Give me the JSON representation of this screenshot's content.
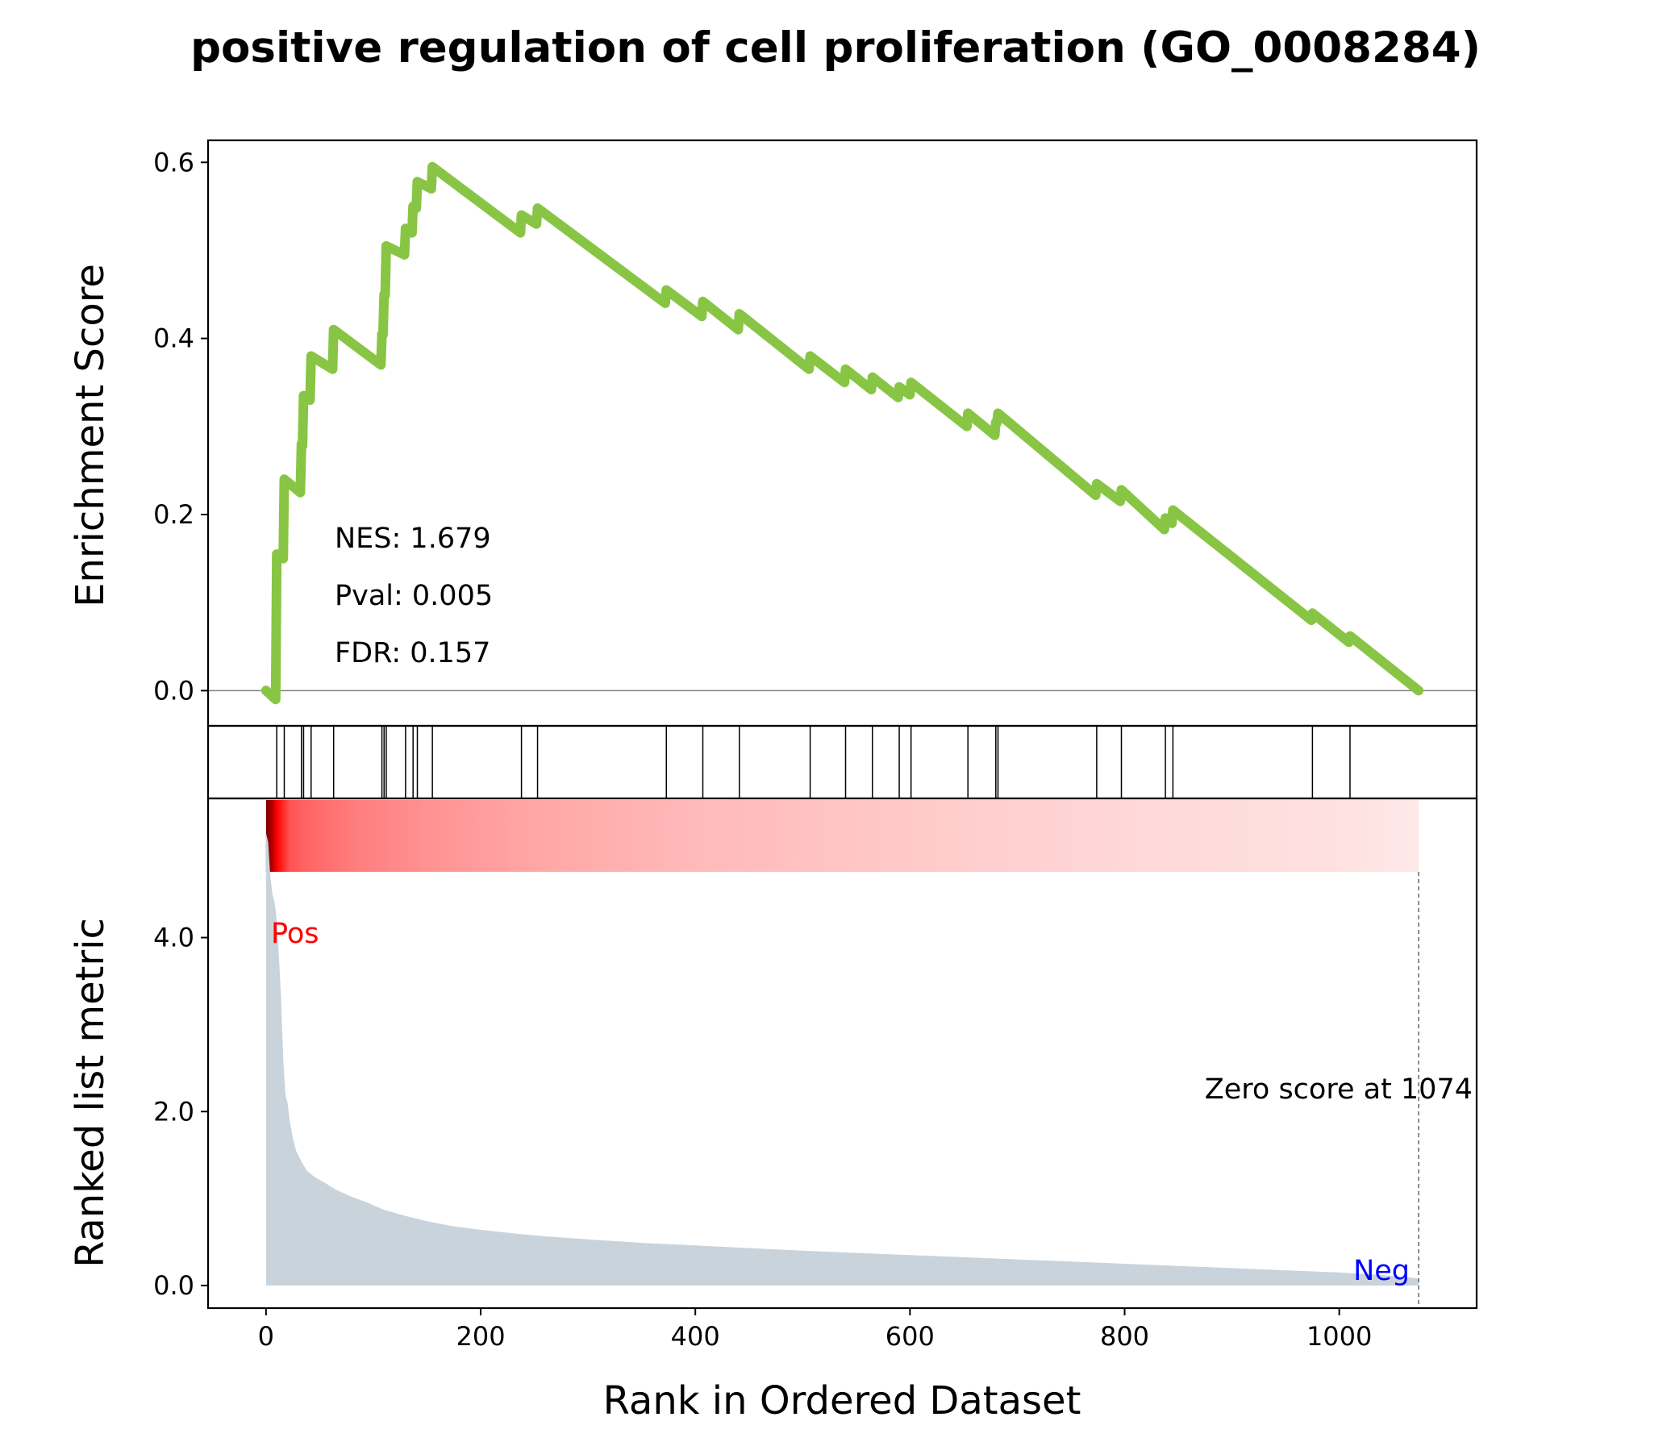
{
  "title": "positive regulation of cell proliferation (GO_0008284)",
  "colors": {
    "es_line": "#88C544",
    "metric_fill": "#C9D3DB",
    "pos_label": "#FF0000",
    "neg_label": "#0000FF",
    "zero_line": "#808080",
    "heatmap": "#FF0000"
  },
  "stats": {
    "nes": "NES: 1.679",
    "pval": "Pval: 0.005",
    "fdr": "FDR: 0.157"
  },
  "annotations": {
    "pos": "Pos",
    "neg": "Neg",
    "zero_score": "Zero score at 1074"
  },
  "chart_data": [
    {
      "type": "line",
      "name": "enrichment-score",
      "ylabel": "Enrichment Score",
      "xlim": [
        -54,
        1128
      ],
      "ylim": [
        -0.04,
        0.625
      ],
      "yticks": [
        "0.0",
        "0.2",
        "0.4",
        "0.6"
      ],
      "ytick_values": [
        0.0,
        0.2,
        0.4,
        0.6
      ],
      "grid": false,
      "zero_score_rank": 1074,
      "hit_ranks": [
        10,
        17,
        33,
        35,
        42,
        63,
        108,
        110,
        112,
        130,
        137,
        141,
        155,
        238,
        253,
        373,
        407,
        441,
        507,
        540,
        565,
        590,
        601,
        654,
        680,
        682,
        774,
        797,
        838,
        845,
        975,
        1010
      ],
      "points": [
        [
          0,
          0.0
        ],
        [
          9,
          -0.01
        ],
        [
          10,
          0.155
        ],
        [
          16,
          0.15
        ],
        [
          17,
          0.24
        ],
        [
          32,
          0.225
        ],
        [
          33,
          0.28
        ],
        [
          34,
          0.278
        ],
        [
          35,
          0.335
        ],
        [
          41,
          0.33
        ],
        [
          42,
          0.38
        ],
        [
          62,
          0.365
        ],
        [
          63,
          0.41
        ],
        [
          107,
          0.37
        ],
        [
          108,
          0.405
        ],
        [
          109,
          0.404
        ],
        [
          110,
          0.45
        ],
        [
          111,
          0.449
        ],
        [
          112,
          0.505
        ],
        [
          129,
          0.495
        ],
        [
          130,
          0.525
        ],
        [
          136,
          0.52
        ],
        [
          137,
          0.55
        ],
        [
          140,
          0.548
        ],
        [
          141,
          0.578
        ],
        [
          154,
          0.57
        ],
        [
          155,
          0.595
        ],
        [
          237,
          0.52
        ],
        [
          238,
          0.54
        ],
        [
          252,
          0.53
        ],
        [
          253,
          0.548
        ],
        [
          372,
          0.44
        ],
        [
          373,
          0.455
        ],
        [
          406,
          0.425
        ],
        [
          407,
          0.442
        ],
        [
          440,
          0.41
        ],
        [
          441,
          0.428
        ],
        [
          506,
          0.365
        ],
        [
          507,
          0.38
        ],
        [
          539,
          0.35
        ],
        [
          540,
          0.365
        ],
        [
          564,
          0.342
        ],
        [
          565,
          0.356
        ],
        [
          589,
          0.333
        ],
        [
          590,
          0.345
        ],
        [
          600,
          0.336
        ],
        [
          601,
          0.35
        ],
        [
          653,
          0.3
        ],
        [
          654,
          0.315
        ],
        [
          679,
          0.29
        ],
        [
          680,
          0.305
        ],
        [
          681,
          0.304
        ],
        [
          682,
          0.315
        ],
        [
          773,
          0.222
        ],
        [
          774,
          0.235
        ],
        [
          796,
          0.215
        ],
        [
          797,
          0.228
        ],
        [
          837,
          0.183
        ],
        [
          838,
          0.196
        ],
        [
          844,
          0.19
        ],
        [
          845,
          0.205
        ],
        [
          974,
          0.08
        ],
        [
          975,
          0.088
        ],
        [
          1009,
          0.055
        ],
        [
          1010,
          0.062
        ],
        [
          1074,
          0.0
        ]
      ]
    },
    {
      "type": "area",
      "name": "ranked-list-metric",
      "xlabel": "Rank in Ordered Dataset",
      "ylabel": "Ranked list metric",
      "xlim": [
        -54,
        1128
      ],
      "ylim": [
        -0.26,
        5.6
      ],
      "xticks": [
        "0",
        "200",
        "400",
        "600",
        "800",
        "1000"
      ],
      "xtick_values": [
        0,
        200,
        400,
        600,
        800,
        1000
      ],
      "yticks": [
        "0.0",
        "2.0",
        "4.0"
      ],
      "ytick_values": [
        0.0,
        2.0,
        4.0
      ],
      "grid": false,
      "points": [
        [
          0,
          5.2
        ],
        [
          2,
          5.1
        ],
        [
          4,
          4.7
        ],
        [
          6,
          4.5
        ],
        [
          8,
          4.4
        ],
        [
          10,
          4.2
        ],
        [
          12,
          3.8
        ],
        [
          14,
          3.3
        ],
        [
          16,
          2.6
        ],
        [
          18,
          2.2
        ],
        [
          20,
          2.1
        ],
        [
          22,
          1.9
        ],
        [
          25,
          1.7
        ],
        [
          28,
          1.55
        ],
        [
          32,
          1.45
        ],
        [
          38,
          1.32
        ],
        [
          45,
          1.25
        ],
        [
          55,
          1.18
        ],
        [
          65,
          1.1
        ],
        [
          80,
          1.02
        ],
        [
          95,
          0.95
        ],
        [
          110,
          0.87
        ],
        [
          130,
          0.8
        ],
        [
          150,
          0.74
        ],
        [
          175,
          0.68
        ],
        [
          200,
          0.64
        ],
        [
          230,
          0.6
        ],
        [
          260,
          0.565
        ],
        [
          300,
          0.53
        ],
        [
          350,
          0.49
        ],
        [
          400,
          0.46
        ],
        [
          450,
          0.43
        ],
        [
          500,
          0.4
        ],
        [
          550,
          0.375
        ],
        [
          600,
          0.35
        ],
        [
          650,
          0.325
        ],
        [
          700,
          0.3
        ],
        [
          750,
          0.275
        ],
        [
          800,
          0.25
        ],
        [
          850,
          0.225
        ],
        [
          900,
          0.2
        ],
        [
          950,
          0.175
        ],
        [
          1000,
          0.15
        ],
        [
          1040,
          0.12
        ],
        [
          1074,
          0.08
        ]
      ]
    },
    {
      "type": "heatmap",
      "name": "rank-color-bar",
      "x_range": [
        0,
        1074
      ],
      "stops": [
        [
          0,
          1.0
        ],
        [
          5,
          0.95
        ],
        [
          10,
          0.85
        ],
        [
          16,
          0.7
        ],
        [
          22,
          0.55
        ],
        [
          40,
          0.48
        ],
        [
          80,
          0.4
        ],
        [
          150,
          0.32
        ],
        [
          250,
          0.25
        ],
        [
          400,
          0.18
        ],
        [
          600,
          0.12
        ],
        [
          800,
          0.07
        ],
        [
          1000,
          0.035
        ],
        [
          1074,
          0.01
        ]
      ]
    }
  ]
}
